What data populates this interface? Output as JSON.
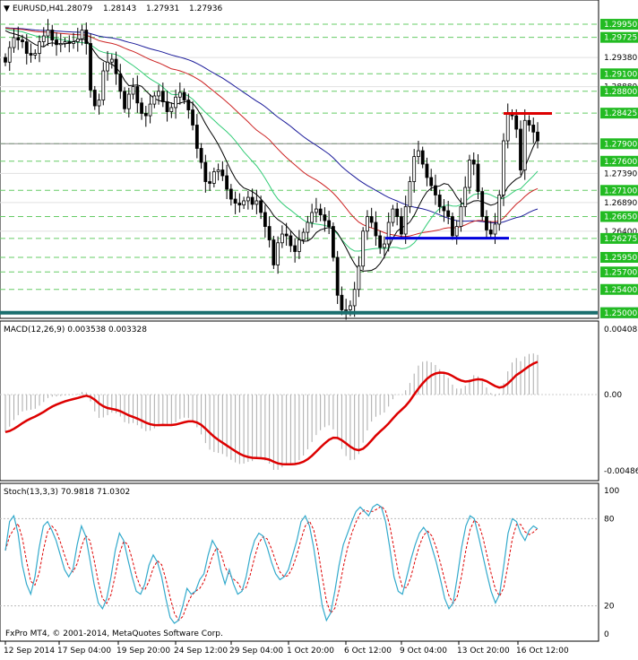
{
  "main_panel": {
    "header": {
      "symbol": "EURUSD,H4",
      "open": "1.28079",
      "high": "1.28143",
      "low": "1.27931",
      "close": "1.27936"
    },
    "price_labels": [
      "1.29950",
      "1.29725",
      "1.29380",
      "1.29100",
      "1.28880",
      "1.28800",
      "1.28425",
      "1.27900",
      "1.27600",
      "1.27390",
      "1.27100",
      "1.26890",
      "1.26650",
      "1.26400",
      "1.26275",
      "1.25950",
      "1.25700",
      "1.25400",
      "1.25000"
    ],
    "highlighted_levels": [
      {
        "label": "1.29950",
        "value": 1.2995
      },
      {
        "label": "1.29725",
        "value": 1.29725
      },
      {
        "label": "1.29100",
        "value": 1.291
      },
      {
        "label": "1.28800",
        "value": 1.288
      },
      {
        "label": "1.28425",
        "value": 1.28425
      },
      {
        "label": "1.27900",
        "value": 1.279
      },
      {
        "label": "1.27600",
        "value": 1.276
      },
      {
        "label": "1.27100",
        "value": 1.271
      },
      {
        "label": "1.26650",
        "value": 1.2665
      },
      {
        "label": "1.26275",
        "value": 1.26275
      },
      {
        "label": "1.25950",
        "value": 1.2595
      },
      {
        "label": "1.25700",
        "value": 1.257
      },
      {
        "label": "1.25400",
        "value": 1.254
      },
      {
        "label": "1.25000",
        "value": 1.25
      }
    ],
    "current_price": 1.279,
    "support_level": 1.2628,
    "resistance_level": 1.2842,
    "baseline_level": 1.25
  },
  "macd_panel": {
    "header": "MACD(12,26,9) 0.003538 0.003328",
    "labels": [
      "0.004087",
      "0.00",
      "-0.004866"
    ]
  },
  "stoch_panel": {
    "header": "Stoch(13,3,3) 70.9818 71.0302",
    "labels": [
      "100",
      "80",
      "20",
      "0"
    ]
  },
  "x_axis_labels": [
    "12 Sep 2014",
    "17 Sep 04:00",
    "19 Sep 20:00",
    "24 Sep 12:00",
    "29 Sep 04:00",
    "1 Oct 20:00",
    "6 Oct 12:00",
    "9 Oct 04:00",
    "13 Oct 20:00",
    "16 Oct 12:00"
  ],
  "copyright": "FxPro MT4, © 2001-2014, MetaQuotes Software Corp.",
  "colors": {
    "candles": "#000000",
    "ma_fast": "#000000",
    "ma_green": "#33cc77",
    "ma_red": "#cc2222",
    "ma_blue": "#1a1a99",
    "support": "#0000dd",
    "resistance": "#dd0000",
    "baseline": "#1a6e6e",
    "macd_signal": "#dd0000",
    "macd_hist": "#aaaaaa",
    "stoch_main": "#33aacc",
    "stoch_signal": "#dd0000",
    "highlight_label_bg": "#22bb22"
  },
  "chart_data": {
    "type": "candlestick",
    "title": "EURUSD,H4",
    "ylim": [
      1.2495,
      1.3012
    ],
    "y_ticks": [
      1.2995,
      1.29725,
      1.2938,
      1.291,
      1.2888,
      1.288,
      1.28425,
      1.279,
      1.276,
      1.2739,
      1.271,
      1.2689,
      1.2665,
      1.264,
      1.26275,
      1.2595,
      1.257,
      1.254,
      1.25
    ],
    "x_ticks": [
      "12 Sep 2014",
      "17 Sep 04:00",
      "19 Sep 20:00",
      "24 Sep 12:00",
      "29 Sep 04:00",
      "1 Oct 20:00",
      "6 Oct 12:00",
      "9 Oct 04:00",
      "13 Oct 20:00",
      "16 Oct 12:00"
    ],
    "close_path": [
      1.293,
      1.2955,
      1.2972,
      1.2968,
      1.2965,
      1.2945,
      1.2942,
      1.2945,
      1.2965,
      1.2975,
      1.2985,
      1.2968,
      1.296,
      1.2962,
      1.2965,
      1.2962,
      1.2965,
      1.297,
      1.2985,
      1.2962,
      1.2882,
      1.2855,
      1.2865,
      1.2915,
      1.293,
      1.2935,
      1.291,
      1.288,
      1.285,
      1.2875,
      1.2888,
      1.286,
      1.2842,
      1.2838,
      1.2858,
      1.2872,
      1.288,
      1.2862,
      1.2845,
      1.2852,
      1.287,
      1.2878,
      1.2865,
      1.2848,
      1.2822,
      1.2782,
      1.2758,
      1.2725,
      1.2722,
      1.2742,
      1.2745,
      1.2735,
      1.2712,
      1.2695,
      1.2688,
      1.2685,
      1.2692,
      1.2698,
      1.2686,
      1.2692,
      1.2672,
      1.2648,
      1.2625,
      1.2582,
      1.262,
      1.2635,
      1.2632,
      1.2615,
      1.2605,
      1.2625,
      1.2638,
      1.2655,
      1.2672,
      1.2678,
      1.2668,
      1.2658,
      1.2648,
      1.2595,
      1.253,
      1.2505,
      1.2505,
      1.2512,
      1.254,
      1.258,
      1.264,
      1.2665,
      1.2655,
      1.2632,
      1.2612,
      1.2618,
      1.2655,
      1.2678,
      1.2665,
      1.2635,
      1.2682,
      1.2725,
      1.2768,
      1.2778,
      1.2755,
      1.2732,
      1.2718,
      1.2702,
      1.2682,
      1.2675,
      1.2665,
      1.2632,
      1.2648,
      1.2682,
      1.2715,
      1.2762,
      1.2755,
      1.2708,
      1.2665,
      1.2642,
      1.2635,
      1.2652,
      1.2702,
      1.2795,
      1.2842,
      1.2838,
      1.2815,
      1.2745,
      1.283,
      1.2822,
      1.281,
      1.2795
    ],
    "series": [
      {
        "name": "Stoch main",
        "values": [
          58,
          78,
          82,
          70,
          48,
          35,
          28,
          40,
          60,
          75,
          78,
          72,
          65,
          55,
          45,
          40,
          45,
          62,
          75,
          68,
          52,
          35,
          22,
          18,
          25,
          40,
          58,
          70,
          65,
          52,
          40,
          30,
          28,
          35,
          48,
          55,
          50,
          40,
          25,
          12,
          8,
          10,
          20,
          32,
          28,
          30,
          38,
          42,
          55,
          65,
          60,
          45,
          35,
          45,
          35,
          28,
          30,
          40,
          55,
          65,
          70,
          68,
          60,
          50,
          42,
          38,
          40,
          45,
          55,
          65,
          78,
          82,
          75,
          60,
          40,
          20,
          10,
          15,
          30,
          48,
          62,
          70,
          78,
          85,
          88,
          85,
          82,
          88,
          90,
          88,
          78,
          60,
          40,
          30,
          28,
          40,
          52,
          62,
          70,
          74,
          70,
          60,
          50,
          38,
          25,
          18,
          22,
          40,
          60,
          75,
          82,
          80,
          68,
          55,
          42,
          30,
          22,
          28,
          48,
          70,
          80,
          78,
          70,
          65,
          72,
          75,
          73
        ]
      }
    ]
  }
}
